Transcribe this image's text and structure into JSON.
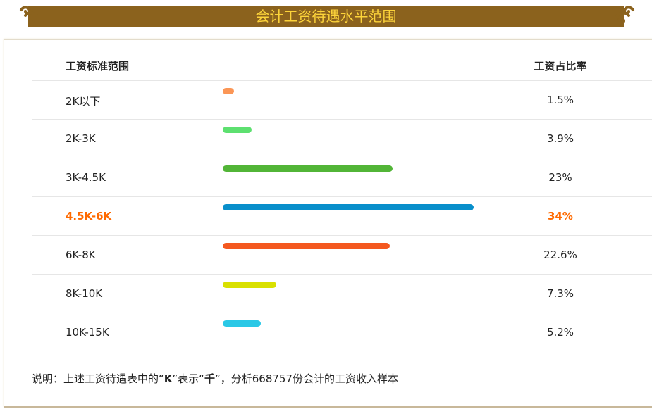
{
  "title": "会计工资待遇水平范围",
  "chart_data": {
    "type": "bar",
    "orientation": "horizontal",
    "header": {
      "range": "工资标准范围",
      "ratio": "工资占比率"
    },
    "categories": [
      "2K以下",
      "2K-3K",
      "3K-4.5K",
      "4.5K-6K",
      "6K-8K",
      "8K-10K",
      "10K-15K"
    ],
    "values": [
      1.5,
      3.9,
      23,
      34,
      22.6,
      7.3,
      5.2
    ],
    "labels": [
      "1.5%",
      "3.9%",
      "23%",
      "34%",
      "22.6%",
      "7.3%",
      "5.2%"
    ],
    "colors": [
      "#fb9656",
      "#5de070",
      "#52b537",
      "#088fcb",
      "#f4581f",
      "#d9e000",
      "#2ac8e6"
    ],
    "highlight_index": 3,
    "highlight_color": "#ff6a00"
  },
  "note": {
    "prefix": "说明：上述工资待遇表中的“",
    "k": "K",
    "mid": "”表示“",
    "qian": "千",
    "suffix": "”，分析668757份会计的工资收入样本"
  }
}
